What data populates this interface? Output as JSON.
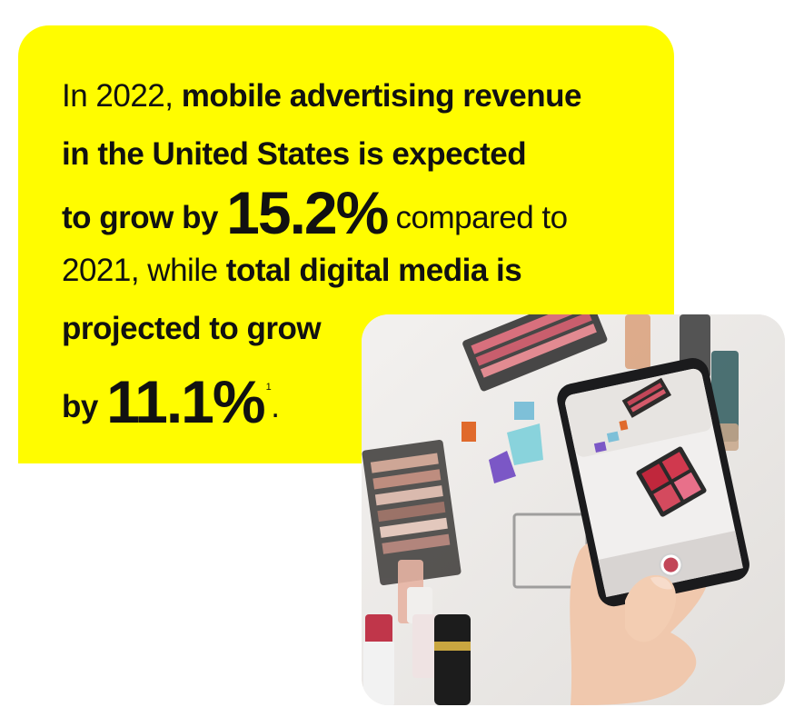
{
  "stat": {
    "l1_a": "In 2022, ",
    "l1_b": "mobile advertising revenue",
    "l2": "in the United States is expected",
    "l3_a": "to grow by ",
    "l3_big": "15.2%",
    "l3_c": " compared to",
    "l4_a": "2021, while ",
    "l4_b": "total digital media is",
    "l5": "projected to grow",
    "l6_a": "by ",
    "l6_big": "11.1%",
    "l6_sup": "1",
    "l6_dot": "."
  },
  "colors": {
    "brand_yellow": "#FFFC00",
    "text": "#111111"
  },
  "photo": {
    "icon": "smartphone-makeup-photo-icon"
  }
}
